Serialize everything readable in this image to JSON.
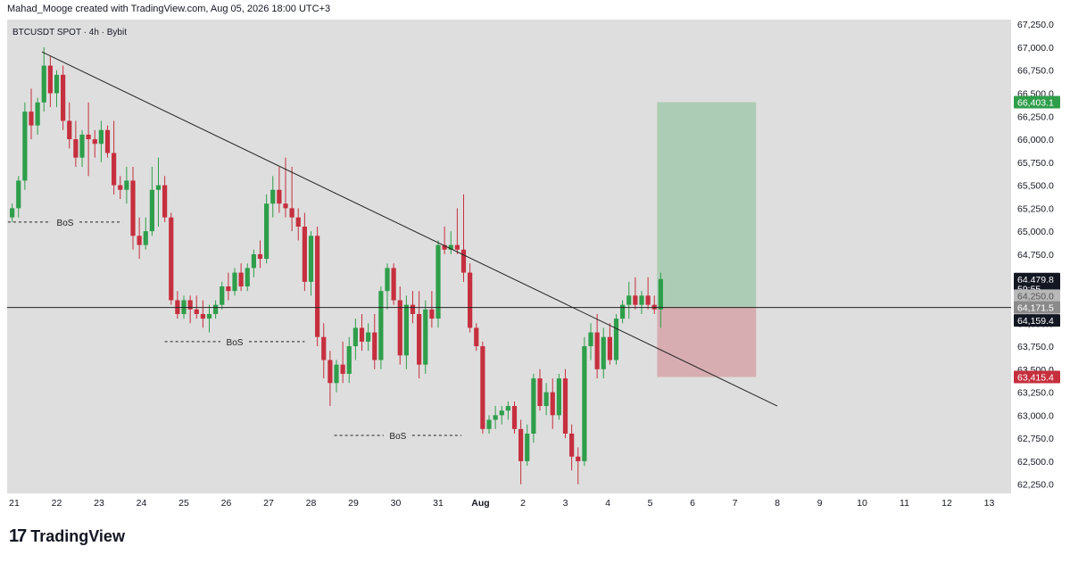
{
  "header": {
    "created_text": "Mahad_Mooge created with TradingView.com, Aug 05, 2026 18:00 UTC+3"
  },
  "chart_data": {
    "type": "candlestick",
    "title": "BTCUSDT SPOT · 4h · Bybit",
    "y_axis": {
      "ylim": [
        62150,
        67300
      ],
      "ticks": [
        62250,
        62500,
        62750,
        63000,
        63250,
        63500,
        63750,
        64000,
        64250,
        64500,
        64750,
        65000,
        65250,
        65500,
        65750,
        66000,
        66250,
        66500,
        66750,
        67000,
        67250
      ],
      "tick_labels": [
        "62,250.0",
        "62,500.0",
        "62,750.0",
        "63,000.0",
        "63,250.0",
        "63,500.0",
        "63,750.0",
        "64,000.0",
        "64,250.0",
        "64,500.0",
        "64,750.0",
        "65,000.0",
        "65,250.0",
        "65,500.0",
        "65,750.0",
        "66,000.0",
        "66,250.0",
        "66,500.0",
        "66,750.0",
        "67,000.0",
        "67,250.0"
      ]
    },
    "x_axis": {
      "xlim": [
        0,
        23.3
      ],
      "ticks": [
        0,
        1,
        2,
        3,
        4,
        5,
        6,
        7,
        8,
        9,
        10,
        11,
        12,
        13,
        14,
        15,
        16,
        17,
        18,
        19,
        20,
        21,
        22,
        23
      ],
      "tick_labels": [
        "21",
        "22",
        "23",
        "24",
        "25",
        "26",
        "27",
        "28",
        "29",
        "30",
        "31",
        "Aug",
        "2",
        "3",
        "4",
        "5",
        "6",
        "7",
        "8",
        "9",
        "10",
        "11",
        "12",
        "13"
      ],
      "bold_labels": [
        "Aug"
      ]
    },
    "colors": {
      "up": "#2e9e4a",
      "down": "#c62f3e",
      "background": "#dedede",
      "trendline": "#222222"
    },
    "candles": [
      {
        "t": -0.05,
        "o": 65150,
        "h": 65300,
        "l": 65100,
        "c": 65250
      },
      {
        "t": 0.1,
        "o": 65250,
        "h": 65600,
        "l": 65150,
        "c": 65550
      },
      {
        "t": 0.25,
        "o": 65550,
        "h": 66400,
        "l": 65450,
        "c": 66300
      },
      {
        "t": 0.4,
        "o": 66300,
        "h": 66550,
        "l": 66000,
        "c": 66150
      },
      {
        "t": 0.55,
        "o": 66150,
        "h": 66450,
        "l": 66050,
        "c": 66400
      },
      {
        "t": 0.7,
        "o": 66400,
        "h": 67000,
        "l": 66300,
        "c": 66800
      },
      {
        "t": 0.85,
        "o": 66800,
        "h": 66900,
        "l": 66350,
        "c": 66500
      },
      {
        "t": 1.0,
        "o": 66500,
        "h": 66750,
        "l": 66350,
        "c": 66700
      },
      {
        "t": 1.15,
        "o": 66700,
        "h": 66800,
        "l": 66100,
        "c": 66200
      },
      {
        "t": 1.3,
        "o": 66200,
        "h": 66400,
        "l": 65900,
        "c": 66000
      },
      {
        "t": 1.45,
        "o": 66000,
        "h": 66200,
        "l": 65700,
        "c": 65800
      },
      {
        "t": 1.6,
        "o": 65800,
        "h": 66100,
        "l": 65700,
        "c": 66050
      },
      {
        "t": 1.75,
        "o": 66050,
        "h": 66400,
        "l": 65600,
        "c": 66000
      },
      {
        "t": 1.9,
        "o": 66000,
        "h": 66100,
        "l": 65800,
        "c": 65950
      },
      {
        "t": 2.05,
        "o": 65950,
        "h": 66200,
        "l": 65750,
        "c": 66100
      },
      {
        "t": 2.2,
        "o": 66100,
        "h": 66150,
        "l": 65800,
        "c": 65850
      },
      {
        "t": 2.35,
        "o": 65850,
        "h": 66200,
        "l": 65400,
        "c": 65500
      },
      {
        "t": 2.5,
        "o": 65500,
        "h": 65600,
        "l": 65350,
        "c": 65450
      },
      {
        "t": 2.65,
        "o": 65450,
        "h": 65700,
        "l": 65300,
        "c": 65550
      },
      {
        "t": 2.8,
        "o": 65550,
        "h": 65700,
        "l": 64800,
        "c": 64950
      },
      {
        "t": 2.95,
        "o": 64950,
        "h": 65150,
        "l": 64700,
        "c": 64850
      },
      {
        "t": 3.1,
        "o": 64850,
        "h": 65150,
        "l": 64800,
        "c": 65000
      },
      {
        "t": 3.25,
        "o": 65000,
        "h": 65700,
        "l": 64950,
        "c": 65450
      },
      {
        "t": 3.4,
        "o": 65450,
        "h": 65800,
        "l": 65050,
        "c": 65500
      },
      {
        "t": 3.55,
        "o": 65500,
        "h": 65600,
        "l": 65100,
        "c": 65150
      },
      {
        "t": 3.7,
        "o": 65150,
        "h": 65200,
        "l": 64200,
        "c": 64250
      },
      {
        "t": 3.85,
        "o": 64250,
        "h": 64350,
        "l": 64050,
        "c": 64100
      },
      {
        "t": 4.0,
        "o": 64100,
        "h": 64300,
        "l": 64050,
        "c": 64250
      },
      {
        "t": 4.15,
        "o": 64250,
        "h": 64300,
        "l": 64000,
        "c": 64150
      },
      {
        "t": 4.3,
        "o": 64150,
        "h": 64300,
        "l": 64050,
        "c": 64100
      },
      {
        "t": 4.45,
        "o": 64100,
        "h": 64250,
        "l": 63950,
        "c": 64050
      },
      {
        "t": 4.6,
        "o": 64050,
        "h": 64200,
        "l": 63900,
        "c": 64100
      },
      {
        "t": 4.75,
        "o": 64100,
        "h": 64250,
        "l": 64050,
        "c": 64200
      },
      {
        "t": 4.9,
        "o": 64200,
        "h": 64450,
        "l": 64150,
        "c": 64400
      },
      {
        "t": 5.05,
        "o": 64400,
        "h": 64550,
        "l": 64250,
        "c": 64350
      },
      {
        "t": 5.2,
        "o": 64350,
        "h": 64600,
        "l": 64300,
        "c": 64550
      },
      {
        "t": 5.35,
        "o": 64550,
        "h": 64650,
        "l": 64350,
        "c": 64400
      },
      {
        "t": 5.5,
        "o": 64400,
        "h": 64650,
        "l": 64350,
        "c": 64600
      },
      {
        "t": 5.65,
        "o": 64600,
        "h": 64800,
        "l": 64500,
        "c": 64750
      },
      {
        "t": 5.8,
        "o": 64750,
        "h": 64900,
        "l": 64600,
        "c": 64700
      },
      {
        "t": 5.95,
        "o": 64700,
        "h": 65400,
        "l": 64650,
        "c": 65300
      },
      {
        "t": 6.1,
        "o": 65300,
        "h": 65600,
        "l": 65150,
        "c": 65450
      },
      {
        "t": 6.25,
        "o": 65450,
        "h": 65700,
        "l": 65200,
        "c": 65300
      },
      {
        "t": 6.4,
        "o": 65300,
        "h": 65800,
        "l": 65150,
        "c": 65250
      },
      {
        "t": 6.55,
        "o": 65250,
        "h": 65700,
        "l": 65000,
        "c": 65150
      },
      {
        "t": 6.7,
        "o": 65150,
        "h": 65250,
        "l": 64900,
        "c": 65050
      },
      {
        "t": 6.85,
        "o": 65050,
        "h": 65200,
        "l": 64350,
        "c": 64450
      },
      {
        "t": 7.0,
        "o": 64450,
        "h": 65000,
        "l": 64300,
        "c": 64950
      },
      {
        "t": 7.15,
        "o": 64950,
        "h": 65050,
        "l": 63750,
        "c": 63850
      },
      {
        "t": 7.3,
        "o": 63850,
        "h": 64000,
        "l": 63400,
        "c": 63600
      },
      {
        "t": 7.45,
        "o": 63600,
        "h": 63700,
        "l": 63100,
        "c": 63350
      },
      {
        "t": 7.6,
        "o": 63350,
        "h": 63600,
        "l": 63250,
        "c": 63550
      },
      {
        "t": 7.75,
        "o": 63550,
        "h": 63800,
        "l": 63350,
        "c": 63450
      },
      {
        "t": 7.9,
        "o": 63450,
        "h": 63850,
        "l": 63350,
        "c": 63750
      },
      {
        "t": 8.05,
        "o": 63750,
        "h": 64050,
        "l": 63600,
        "c": 63950
      },
      {
        "t": 8.2,
        "o": 63950,
        "h": 64100,
        "l": 63700,
        "c": 63800
      },
      {
        "t": 8.35,
        "o": 63800,
        "h": 64000,
        "l": 63700,
        "c": 63900
      },
      {
        "t": 8.5,
        "o": 63900,
        "h": 64100,
        "l": 63500,
        "c": 63600
      },
      {
        "t": 8.65,
        "o": 63600,
        "h": 64400,
        "l": 63500,
        "c": 64350
      },
      {
        "t": 8.8,
        "o": 64350,
        "h": 64650,
        "l": 64150,
        "c": 64600
      },
      {
        "t": 8.95,
        "o": 64600,
        "h": 64650,
        "l": 64200,
        "c": 64250
      },
      {
        "t": 9.1,
        "o": 64250,
        "h": 64400,
        "l": 63550,
        "c": 63650
      },
      {
        "t": 9.25,
        "o": 63650,
        "h": 64300,
        "l": 63500,
        "c": 64200
      },
      {
        "t": 9.4,
        "o": 64200,
        "h": 64350,
        "l": 64000,
        "c": 64100
      },
      {
        "t": 9.55,
        "o": 64100,
        "h": 64350,
        "l": 63400,
        "c": 63550
      },
      {
        "t": 9.7,
        "o": 63550,
        "h": 64250,
        "l": 63450,
        "c": 64150
      },
      {
        "t": 9.85,
        "o": 64150,
        "h": 64350,
        "l": 63950,
        "c": 64050
      },
      {
        "t": 10.0,
        "o": 64050,
        "h": 64900,
        "l": 63950,
        "c": 64850
      },
      {
        "t": 10.15,
        "o": 64850,
        "h": 65050,
        "l": 64750,
        "c": 64800
      },
      {
        "t": 10.3,
        "o": 64800,
        "h": 65000,
        "l": 64750,
        "c": 64850
      },
      {
        "t": 10.45,
        "o": 64850,
        "h": 65250,
        "l": 64750,
        "c": 64800
      },
      {
        "t": 10.6,
        "o": 64800,
        "h": 65400,
        "l": 64450,
        "c": 64550
      },
      {
        "t": 10.75,
        "o": 64550,
        "h": 64650,
        "l": 63900,
        "c": 63950
      },
      {
        "t": 10.9,
        "o": 63950,
        "h": 64000,
        "l": 63700,
        "c": 63750
      },
      {
        "t": 11.05,
        "o": 63750,
        "h": 63800,
        "l": 62800,
        "c": 62850
      },
      {
        "t": 11.2,
        "o": 62850,
        "h": 63000,
        "l": 62800,
        "c": 62950
      },
      {
        "t": 11.35,
        "o": 62950,
        "h": 63100,
        "l": 62850,
        "c": 63000
      },
      {
        "t": 11.5,
        "o": 63000,
        "h": 63100,
        "l": 62900,
        "c": 63050
      },
      {
        "t": 11.65,
        "o": 63050,
        "h": 63150,
        "l": 62950,
        "c": 63100
      },
      {
        "t": 11.8,
        "o": 63100,
        "h": 63150,
        "l": 62800,
        "c": 62850
      },
      {
        "t": 11.95,
        "o": 62850,
        "h": 62950,
        "l": 62250,
        "c": 62500
      },
      {
        "t": 12.1,
        "o": 62500,
        "h": 62900,
        "l": 62450,
        "c": 62800
      },
      {
        "t": 12.25,
        "o": 62800,
        "h": 63450,
        "l": 62700,
        "c": 63400
      },
      {
        "t": 12.4,
        "o": 63400,
        "h": 63500,
        "l": 63050,
        "c": 63100
      },
      {
        "t": 12.55,
        "o": 63100,
        "h": 63350,
        "l": 63000,
        "c": 63250
      },
      {
        "t": 12.7,
        "o": 63250,
        "h": 63400,
        "l": 62850,
        "c": 63000
      },
      {
        "t": 12.85,
        "o": 63000,
        "h": 63450,
        "l": 62950,
        "c": 63400
      },
      {
        "t": 13.0,
        "o": 63400,
        "h": 63500,
        "l": 62750,
        "c": 62800
      },
      {
        "t": 13.15,
        "o": 62800,
        "h": 62900,
        "l": 62400,
        "c": 62550
      },
      {
        "t": 13.3,
        "o": 62550,
        "h": 62650,
        "l": 62250,
        "c": 62500
      },
      {
        "t": 13.45,
        "o": 62500,
        "h": 63850,
        "l": 62450,
        "c": 63750
      },
      {
        "t": 13.6,
        "o": 63750,
        "h": 64000,
        "l": 63600,
        "c": 63900
      },
      {
        "t": 13.75,
        "o": 63900,
        "h": 64100,
        "l": 63400,
        "c": 63500
      },
      {
        "t": 13.9,
        "o": 63500,
        "h": 63950,
        "l": 63400,
        "c": 63850
      },
      {
        "t": 14.05,
        "o": 63850,
        "h": 64000,
        "l": 63550,
        "c": 63600
      },
      {
        "t": 14.2,
        "o": 63600,
        "h": 64100,
        "l": 63550,
        "c": 64050
      },
      {
        "t": 14.35,
        "o": 64050,
        "h": 64250,
        "l": 64000,
        "c": 64200
      },
      {
        "t": 14.5,
        "o": 64200,
        "h": 64450,
        "l": 64050,
        "c": 64300
      },
      {
        "t": 14.65,
        "o": 64300,
        "h": 64500,
        "l": 64150,
        "c": 64200
      },
      {
        "t": 14.8,
        "o": 64200,
        "h": 64350,
        "l": 64100,
        "c": 64300
      },
      {
        "t": 14.95,
        "o": 64300,
        "h": 64500,
        "l": 64150,
        "c": 64200
      },
      {
        "t": 15.1,
        "o": 64200,
        "h": 64300,
        "l": 64100,
        "c": 64150
      },
      {
        "t": 15.25,
        "o": 64150,
        "h": 64550,
        "l": 63950,
        "c": 64480
      }
    ],
    "trendline": {
      "from": {
        "t": 0.65,
        "price": 66950
      },
      "to": {
        "t": 18.0,
        "price": 63100
      }
    },
    "horizontal_line": {
      "price": 64171.5
    },
    "bos_annotations": [
      {
        "label": "BoS",
        "price": 65100,
        "t_start": -0.15,
        "t_end": 2.55
      },
      {
        "label": "BoS",
        "price": 63800,
        "t_start": 3.55,
        "t_end": 6.85
      },
      {
        "label": "BoS",
        "price": 62780,
        "t_start": 7.55,
        "t_end": 10.55
      }
    ],
    "position": {
      "type": "long",
      "t_start": 15.25,
      "t_end": 17.5,
      "entry": 64171.5,
      "target": 66403.1,
      "stop": 63415.4,
      "colors": {
        "profit": "#2e9e4a",
        "loss": "#c62f3e"
      }
    },
    "price_labels": [
      {
        "text": "66,403.1",
        "price": 66403.1,
        "bg": "#2e9e4a",
        "fg": "#ffffff"
      },
      {
        "text": "64,479.8",
        "price": 64479.8,
        "bg": "#131722",
        "fg": "#ffffff"
      },
      {
        "text": "59:55",
        "price": 64375,
        "bg": "#131722",
        "fg": "#ffffff"
      },
      {
        "text": "64,250.0",
        "price": 64300,
        "bg": "#b8b8b8",
        "fg": "#555555"
      },
      {
        "text": "64,171.5",
        "price": 64171.5,
        "bg": "#8a8a8a",
        "fg": "#ffffff"
      },
      {
        "text": "64,159.4",
        "price": 64030,
        "bg": "#131722",
        "fg": "#ffffff"
      },
      {
        "text": "63,415.4",
        "price": 63415.4,
        "bg": "#c62f3e",
        "fg": "#ffffff"
      }
    ]
  },
  "footer": {
    "brand": "TradingView",
    "logo_mark": "17"
  }
}
